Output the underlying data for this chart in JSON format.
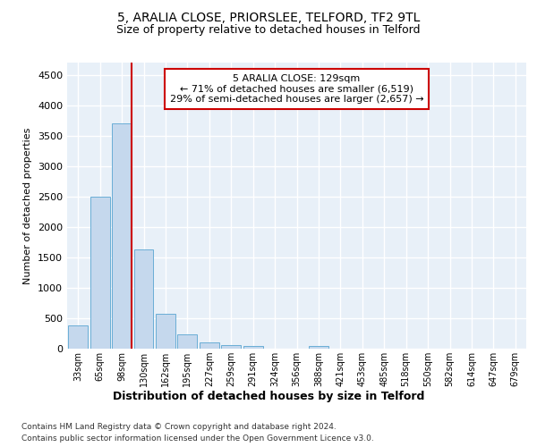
{
  "title1": "5, ARALIA CLOSE, PRIORSLEE, TELFORD, TF2 9TL",
  "title2": "Size of property relative to detached houses in Telford",
  "xlabel": "Distribution of detached houses by size in Telford",
  "ylabel": "Number of detached properties",
  "categories": [
    "33sqm",
    "65sqm",
    "98sqm",
    "130sqm",
    "162sqm",
    "195sqm",
    "227sqm",
    "259sqm",
    "291sqm",
    "324sqm",
    "356sqm",
    "388sqm",
    "421sqm",
    "453sqm",
    "485sqm",
    "518sqm",
    "550sqm",
    "582sqm",
    "614sqm",
    "647sqm",
    "679sqm"
  ],
  "values": [
    380,
    2500,
    3700,
    1630,
    580,
    230,
    100,
    60,
    50,
    0,
    0,
    50,
    0,
    0,
    0,
    0,
    0,
    0,
    0,
    0,
    0
  ],
  "bar_color": "#c5d8ed",
  "bar_edge_color": "#6aaed6",
  "highlight_index": 2,
  "highlight_line_color": "#cc0000",
  "ylim": [
    0,
    4700
  ],
  "yticks": [
    0,
    500,
    1000,
    1500,
    2000,
    2500,
    3000,
    3500,
    4000,
    4500
  ],
  "annotation_text": "5 ARALIA CLOSE: 129sqm\n← 71% of detached houses are smaller (6,519)\n29% of semi-detached houses are larger (2,657) →",
  "annotation_box_color": "#cc0000",
  "footer1": "Contains HM Land Registry data © Crown copyright and database right 2024.",
  "footer2": "Contains public sector information licensed under the Open Government Licence v3.0.",
  "bg_color": "#e8f0f8",
  "grid_color": "#ffffff",
  "fig_bg_color": "#ffffff"
}
